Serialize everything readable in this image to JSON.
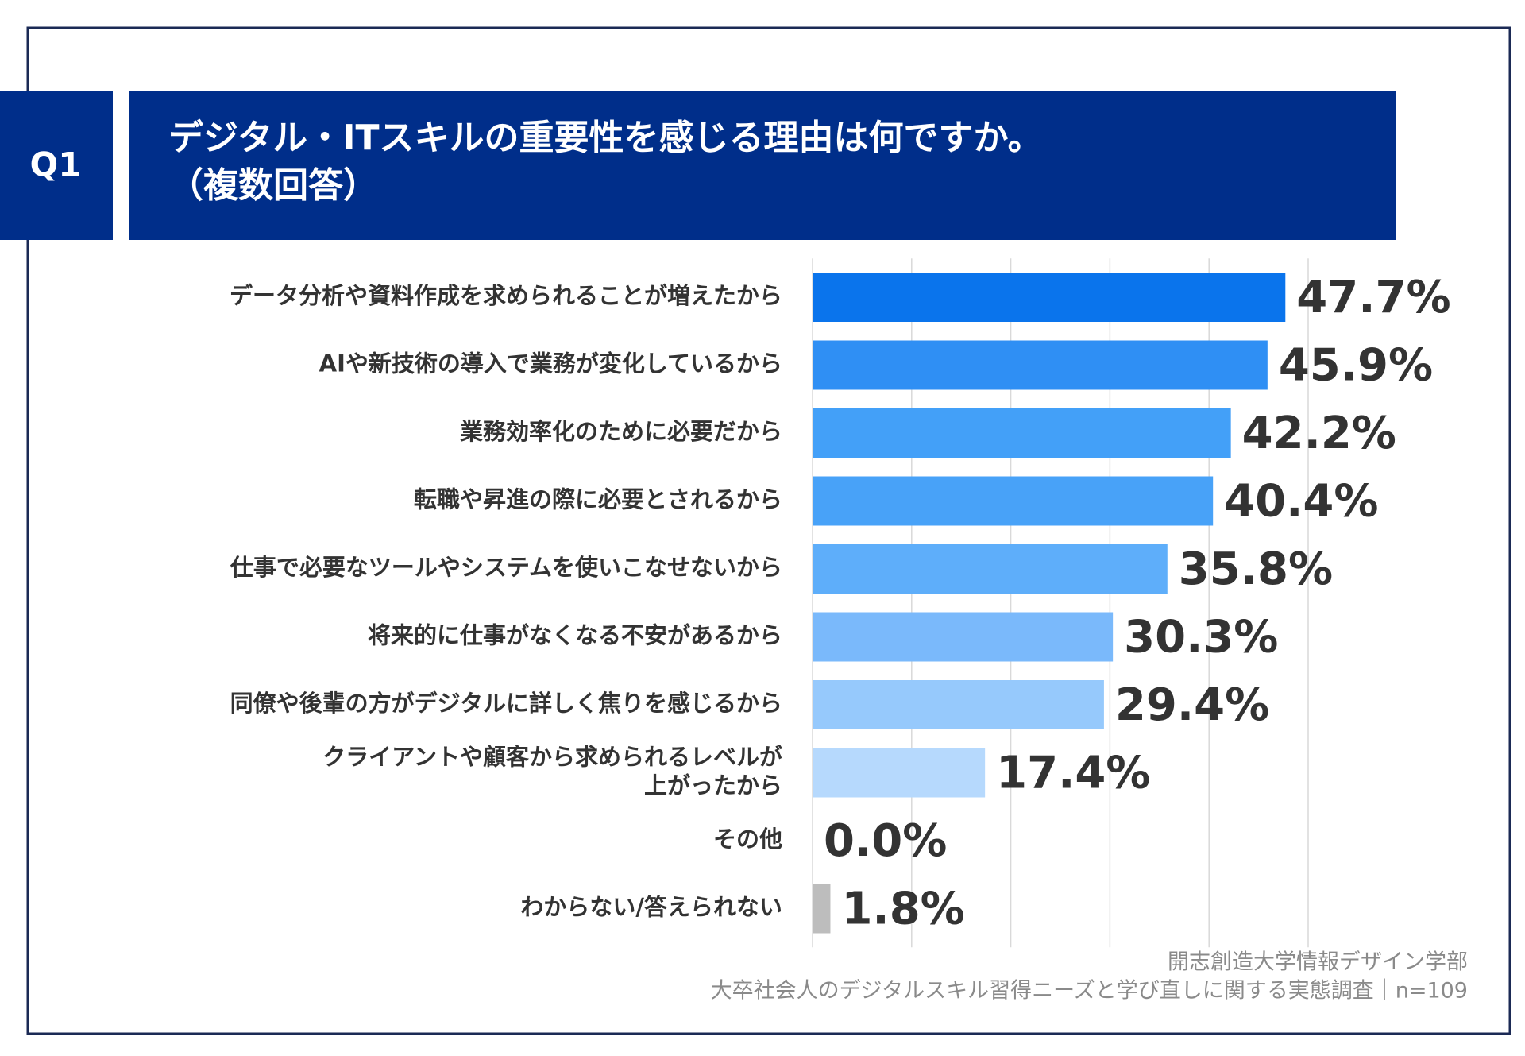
{
  "chart_data": {
    "type": "barh",
    "badge": "Q1",
    "title": "デジタル・ITスキルの重要性を感じる理由は何ですか。",
    "subtitle": "（複数回答）",
    "categories": [
      "データ分析や資料作成を求められることが増えたから",
      "AIや新技術の導入で業務が変化しているから",
      "業務効率化のために必要だから",
      "転職や昇進の際に必要とされるから",
      "仕事で必要なツールやシステムを使いこなせないから",
      "将来的に仕事がなくなる不安があるから",
      "同僚や後輩の方がデジタルに詳しく焦りを感じるから",
      "クライアントや顧客から求められるレベルが\n上がったから",
      "その他",
      "わからない/答えられない"
    ],
    "values": [
      47.7,
      45.9,
      42.2,
      40.4,
      35.8,
      30.3,
      29.4,
      17.4,
      0.0,
      1.8
    ],
    "value_labels": [
      "47.7%",
      "45.9%",
      "42.2%",
      "40.4%",
      "35.8%",
      "30.3%",
      "29.4%",
      "17.4%",
      "0.0%",
      "1.8%"
    ],
    "colors": [
      "#0a74ec",
      "#2f8ff4",
      "#43a0f8",
      "#48a2f8",
      "#5eaefa",
      "#7ab9fb",
      "#96c9fc",
      "#b6d9fd",
      "#c6e1fd",
      "#bdbdbd"
    ],
    "xlim": [
      0,
      50
    ],
    "xticks": [
      0,
      10,
      20,
      30,
      40,
      50
    ],
    "grid": true,
    "source": [
      "開志創造大学情報デザイン学部",
      "大卒社会人のデジタルスキル習得ニーズと学び直しに関する実態調査｜n=109"
    ]
  }
}
